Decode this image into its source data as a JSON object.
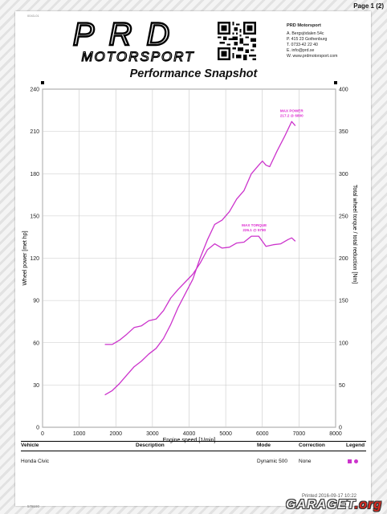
{
  "page": {
    "number": "Page 1 (2)",
    "tiny_code": "0043-01"
  },
  "company": {
    "logo_main": "PRD",
    "logo_sub": "MOTORSPORT",
    "name": "PRD Motorsport",
    "lines": [
      "A.  Bergsjödalen 54c",
      "P.  415 23 Gothenburg",
      "T.  0733-42 22 40",
      "E.  info@prd.se",
      "W.  www.prdmotorsport.com"
    ]
  },
  "title": "Performance Snapshot",
  "chart_data": {
    "type": "line",
    "xlabel": "Engine speed [1/min]",
    "ylabel": "Wheel power [met hp]",
    "y2label": "Total wheel torque / total reduction [Nm]",
    "xlim": [
      0,
      8000
    ],
    "ylim": [
      0,
      240
    ],
    "y2lim": [
      0,
      400
    ],
    "x_ticks": [
      0,
      1000,
      2000,
      3000,
      4000,
      5000,
      6000,
      7000,
      8000
    ],
    "y_ticks": [
      0,
      30,
      60,
      90,
      120,
      150,
      180,
      210,
      240
    ],
    "y2_ticks": [
      0,
      50,
      100,
      150,
      200,
      250,
      300,
      350,
      400
    ],
    "grid": true,
    "series": [
      {
        "name": "Wheel power",
        "axis": "left",
        "color": "#cc33cc",
        "x": [
          1700,
          1900,
          2100,
          2300,
          2500,
          2700,
          2900,
          3100,
          3300,
          3500,
          3700,
          3900,
          4100,
          4300,
          4500,
          4700,
          4900,
          5100,
          5300,
          5500,
          5700,
          5900,
          6000,
          6100,
          6200,
          6400,
          6600,
          6800,
          6900
        ],
        "y": [
          23,
          26,
          31,
          37,
          43,
          47,
          52,
          56,
          63,
          73,
          85,
          95,
          105,
          120,
          133,
          144,
          147,
          153,
          162,
          168,
          180,
          186,
          189,
          186,
          185,
          196,
          206,
          217,
          214
        ]
      },
      {
        "name": "Wheel torque",
        "axis": "right",
        "color": "#cc33cc",
        "x": [
          1700,
          1900,
          2100,
          2300,
          2500,
          2700,
          2900,
          3100,
          3300,
          3500,
          3700,
          3900,
          4100,
          4300,
          4500,
          4700,
          4900,
          5100,
          5300,
          5500,
          5700,
          5900,
          6100,
          6300,
          6500,
          6700,
          6800,
          6900
        ],
        "y": [
          98,
          98,
          103,
          110,
          118,
          120,
          126,
          128,
          138,
          153,
          163,
          172,
          181,
          194,
          210,
          217,
          212,
          213,
          218,
          219,
          226,
          226,
          214,
          216,
          217,
          222,
          224,
          220
        ]
      }
    ],
    "annotations": [
      {
        "label": "MAX POWER",
        "value": "217.2 @ 6800",
        "x": 6800,
        "y": 217,
        "axis": "left"
      },
      {
        "label": "MAX TORQUE",
        "value": "226.1 @ 5780",
        "x": 5780,
        "y": 226,
        "axis": "right"
      }
    ]
  },
  "table": {
    "headers": {
      "vehicle": "Vehicle",
      "description": "Description",
      "mode": "Mode",
      "correction": "Correction",
      "legend": "Legend"
    },
    "rows": [
      {
        "vehicle": "Honda  Civic",
        "description": "",
        "mode": "Dynamic 500",
        "correction": "None",
        "legend_color": "#cc33cc"
      }
    ]
  },
  "footer": {
    "printed": "Printed 2016-09-17 10:22",
    "id": "578190",
    "watermark_main": "GARAGET",
    "watermark_tld": ".org"
  }
}
